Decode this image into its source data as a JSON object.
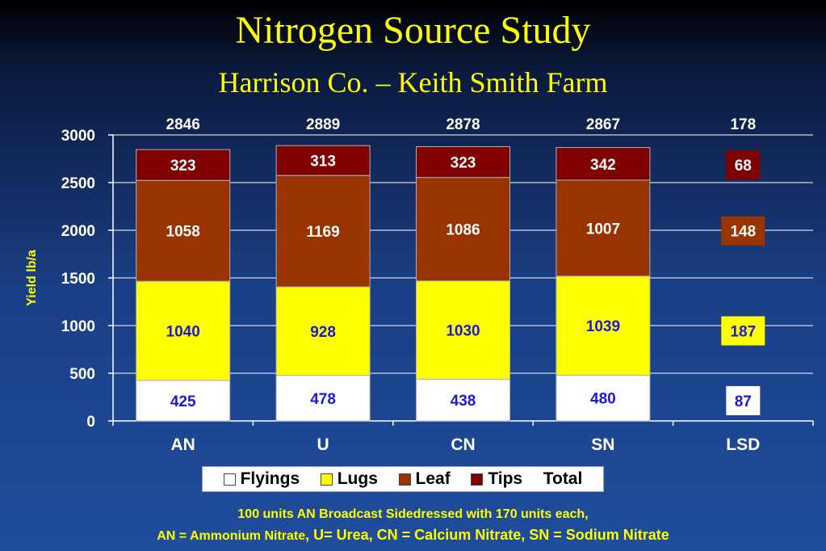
{
  "title": "Nitrogen Source Study",
  "subtitle": "Harrison Co. – Keith Smith Farm",
  "chart_data": {
    "type": "bar",
    "stacked": true,
    "categories": [
      "AN",
      "U",
      "CN",
      "SN",
      "LSD"
    ],
    "series": [
      {
        "name": "Flyings",
        "values": [
          425,
          478,
          438,
          480,
          87
        ],
        "color": "#ffffff",
        "label_color": "#1a1ad6"
      },
      {
        "name": "Lugs",
        "values": [
          1040,
          928,
          1030,
          1039,
          187
        ],
        "color": "#ffff00",
        "label_color": "#1a1ad6"
      },
      {
        "name": "Leaf",
        "values": [
          1058,
          1169,
          1086,
          1007,
          148
        ],
        "color": "#993300",
        "label_color": "#ffffff"
      },
      {
        "name": "Tips",
        "values": [
          323,
          313,
          323,
          342,
          68
        ],
        "color": "#800000",
        "label_color": "#ffffff"
      }
    ],
    "totals": {
      "name": "Total",
      "values": [
        2846,
        2889,
        2878,
        2867,
        178
      ]
    },
    "lsd_note": "LSD column shows least significant difference per component as labeled boxes",
    "ylabel": "Yield lb/a",
    "xlabel": "",
    "ylim": [
      0,
      3000
    ],
    "yticks": [
      0,
      500,
      1000,
      1500,
      2000,
      2500,
      3000
    ],
    "grid": true,
    "legend": "bottom"
  },
  "legend_items": [
    {
      "label": "Flyings",
      "color": "#ffffff"
    },
    {
      "label": "Lugs",
      "color": "#ffff00"
    },
    {
      "label": "Leaf",
      "color": "#993300"
    },
    {
      "label": "Tips",
      "color": "#800000"
    },
    {
      "label": "Total",
      "color": null
    }
  ],
  "footnote": {
    "line1": "100 units AN Broadcast Sidedressed with 170 units each,",
    "line2_prefix": "AN = Ammonium Nitrate",
    "line2_rest": ", U= Urea, CN = Calcium Nitrate, SN = Sodium Nitrate"
  },
  "colors": {
    "title": "#ffff00",
    "axis_text": "#ffffff",
    "grid": "#ffffff"
  }
}
